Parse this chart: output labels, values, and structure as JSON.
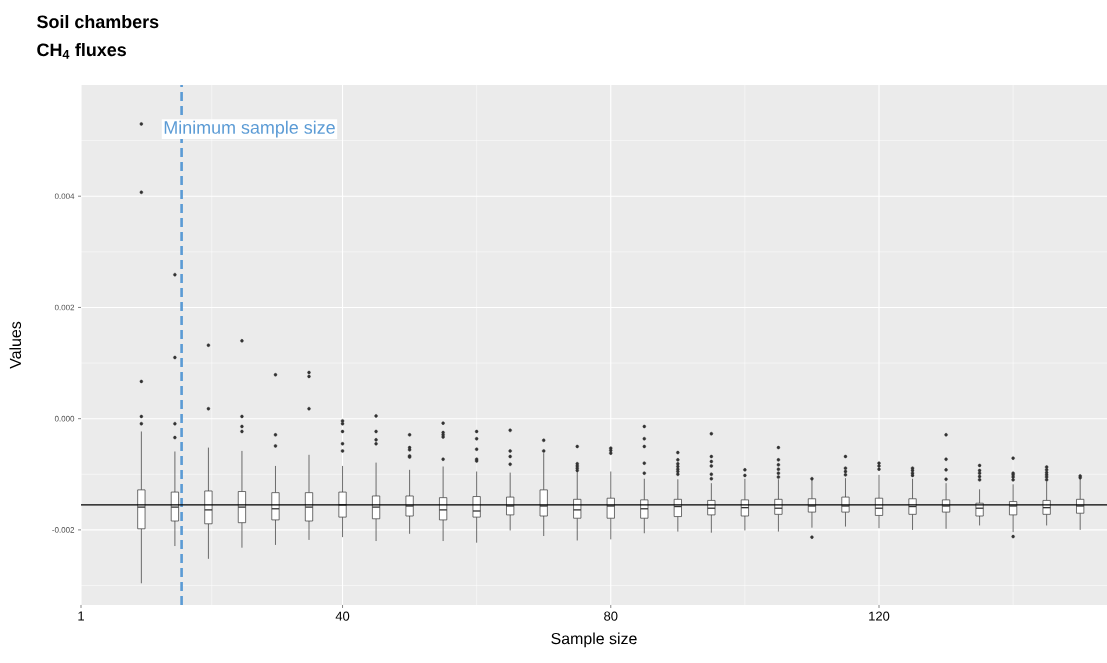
{
  "chart_data": {
    "type": "box",
    "title": "Soil chambers",
    "subtitle": "CH$_{4}$ fluxes",
    "xlabel": "Sample size",
    "ylabel": "Values",
    "x": [
      10,
      15,
      20,
      25,
      30,
      35,
      40,
      45,
      50,
      55,
      60,
      65,
      70,
      75,
      80,
      85,
      90,
      95,
      100,
      105,
      110,
      115,
      120,
      125,
      130,
      135,
      140,
      145,
      150
    ],
    "boxes": [
      {
        "low": -0.00296,
        "q1": -0.00198,
        "median": -0.00159,
        "q3": -0.00128,
        "high": -0.00023,
        "outliers": [
          0.0053,
          0.00407,
          0.00067,
          4e-05,
          -9e-05
        ]
      },
      {
        "low": -0.00229,
        "q1": -0.00184,
        "median": -0.00159,
        "q3": -0.00132,
        "high": -0.00059,
        "outliers": [
          0.00259,
          0.0011,
          -9e-05,
          -0.00034
        ]
      },
      {
        "low": -0.00252,
        "q1": -0.00189,
        "median": -0.00164,
        "q3": -0.0013,
        "high": -0.00052,
        "outliers": [
          0.00132,
          0.00018
        ]
      },
      {
        "low": -0.00232,
        "q1": -0.00187,
        "median": -0.00159,
        "q3": -0.00131,
        "high": -0.00058,
        "outliers": [
          0.0014,
          4e-05,
          -0.00014,
          -0.00023
        ]
      },
      {
        "low": -0.00227,
        "q1": -0.00182,
        "median": -0.00162,
        "q3": -0.00133,
        "high": -0.00085,
        "outliers": [
          0.00079,
          -0.00029,
          -0.00049
        ]
      },
      {
        "low": -0.00218,
        "q1": -0.00184,
        "median": -0.00159,
        "q3": -0.00133,
        "high": -0.00065,
        "outliers": [
          0.00083,
          0.00076,
          0.00018
        ]
      },
      {
        "low": -0.00213,
        "q1": -0.00177,
        "median": -0.00155,
        "q3": -0.00132,
        "high": -0.00085,
        "outliers": [
          -4e-05,
          -9e-05,
          -0.00023,
          -0.00045,
          -0.00058
        ]
      },
      {
        "low": -0.0022,
        "q1": -0.0018,
        "median": -0.00159,
        "q3": -0.00139,
        "high": -0.00079,
        "outliers": [
          5e-05,
          -0.00023,
          -0.00038,
          -0.00045
        ]
      },
      {
        "low": -0.00207,
        "q1": -0.00175,
        "median": -0.00157,
        "q3": -0.00139,
        "high": -0.00092,
        "outliers": [
          -0.00029,
          -0.00052,
          -0.00056,
          -0.00067,
          -0.00069
        ]
      },
      {
        "low": -0.0022,
        "q1": -0.00182,
        "median": -0.00164,
        "q3": -0.00142,
        "high": -0.00086,
        "outliers": [
          -8e-05,
          -0.00025,
          -0.00029,
          -0.00033,
          -0.00073
        ]
      },
      {
        "low": -0.00223,
        "q1": -0.00177,
        "median": -0.00166,
        "q3": -0.0014,
        "high": -0.00095,
        "outliers": [
          -0.00023,
          -0.00036,
          -0.00055,
          -0.00073,
          -0.00076
        ]
      },
      {
        "low": -0.00201,
        "q1": -0.00173,
        "median": -0.00157,
        "q3": -0.00141,
        "high": -0.00097,
        "outliers": [
          -0.00021,
          -0.00058,
          -0.00068,
          -0.00082
        ]
      },
      {
        "low": -0.00211,
        "q1": -0.00175,
        "median": -0.00157,
        "q3": -0.00128,
        "high": -0.00062,
        "outliers": [
          -0.00039,
          -0.00058
        ]
      },
      {
        "low": -0.00219,
        "q1": -0.00179,
        "median": -0.00164,
        "q3": -0.00145,
        "high": -0.00095,
        "outliers": [
          -0.0005,
          -0.00081,
          -0.00085,
          -0.00089,
          -0.00093
        ]
      },
      {
        "low": -0.00217,
        "q1": -0.00179,
        "median": -0.00157,
        "q3": -0.00143,
        "high": -0.00095,
        "outliers": [
          -0.00053,
          -0.00057,
          -0.00062
        ]
      },
      {
        "low": -0.00206,
        "q1": -0.00179,
        "median": -0.00162,
        "q3": -0.00146,
        "high": -0.00108,
        "outliers": [
          -0.00014,
          -0.00036,
          -0.0005,
          -0.0008,
          -0.00098
        ]
      },
      {
        "low": -0.00203,
        "q1": -0.00176,
        "median": -0.00158,
        "q3": -0.00145,
        "high": -0.00109,
        "outliers": [
          -0.00061,
          -0.00074,
          -0.00081,
          -0.00086,
          -0.00091,
          -0.00095,
          -0.001
        ]
      },
      {
        "low": -0.00205,
        "q1": -0.00173,
        "median": -0.00161,
        "q3": -0.00147,
        "high": -0.00116,
        "outliers": [
          -0.00027,
          -0.00068,
          -0.00077,
          -0.00085,
          -0.001,
          -0.00108
        ]
      },
      {
        "low": -0.00201,
        "q1": -0.00175,
        "median": -0.0016,
        "q3": -0.00146,
        "high": -0.00108,
        "outliers": [
          -0.00092,
          -0.00102
        ]
      },
      {
        "low": -0.00203,
        "q1": -0.00172,
        "median": -0.00161,
        "q3": -0.00145,
        "high": -0.00109,
        "outliers": [
          -0.00052,
          -0.00074,
          -0.00083,
          -0.00091,
          -0.00098,
          -0.00105
        ]
      },
      {
        "low": -0.00196,
        "q1": -0.00168,
        "median": -0.00157,
        "q3": -0.00144,
        "high": -0.0011,
        "outliers": [
          -0.00108,
          -0.00213
        ]
      },
      {
        "low": -0.00194,
        "q1": -0.00168,
        "median": -0.00157,
        "q3": -0.00141,
        "high": -0.00107,
        "outliers": [
          -0.00068,
          -0.00089,
          -0.00095,
          -0.00101
        ]
      },
      {
        "low": -0.00197,
        "q1": -0.00174,
        "median": -0.00161,
        "q3": -0.00143,
        "high": -0.00101,
        "outliers": [
          -0.0008,
          -0.00085,
          -0.00091
        ]
      },
      {
        "low": -0.002,
        "q1": -0.00172,
        "median": -0.00158,
        "q3": -0.00144,
        "high": -0.00108,
        "outliers": [
          -0.00089,
          -0.00093,
          -0.00098,
          -0.00102
        ]
      },
      {
        "low": -0.00198,
        "q1": -0.00168,
        "median": -0.00157,
        "q3": -0.00146,
        "high": -0.00116,
        "outliers": [
          -0.00029,
          -0.00073,
          -0.00092,
          -0.00109
        ]
      },
      {
        "low": -0.00192,
        "q1": -0.00175,
        "median": -0.00161,
        "q3": -0.00152,
        "high": -0.00127,
        "outliers": [
          -0.00084,
          -0.00093,
          -0.00098,
          -0.00104,
          -0.0011
        ]
      },
      {
        "low": -0.00204,
        "q1": -0.00173,
        "median": -0.00157,
        "q3": -0.00149,
        "high": -0.00118,
        "outliers": [
          -0.00071,
          -0.00098,
          -0.00101,
          -0.00105,
          -0.0011,
          -0.00212
        ]
      },
      {
        "low": -0.00192,
        "q1": -0.00172,
        "median": -0.0016,
        "q3": -0.00147,
        "high": -0.00113,
        "outliers": [
          -0.00087,
          -0.00092,
          -0.00097,
          -0.00101,
          -0.00105,
          -0.0011
        ]
      },
      {
        "low": -0.002,
        "q1": -0.0017,
        "median": -0.00157,
        "q3": -0.00145,
        "high": -0.00107,
        "outliers": [
          -0.00103,
          -0.00106
        ]
      }
    ],
    "xlim": [
      1,
      154
    ],
    "xticks": [
      1,
      40,
      80,
      120
    ],
    "ylim": [
      -0.00335,
      0.006
    ],
    "yticks": [
      {
        "value": -0.002,
        "label": "-0.002"
      },
      {
        "value": 0,
        "label": "0.000"
      },
      {
        "value": 0.002,
        "label": "0.002"
      },
      {
        "value": 0.004,
        "label": "0.004"
      }
    ],
    "ref_lines": [
      {
        "axis": "x",
        "value": 16,
        "label": "Minimum sample size",
        "color": "#5b9bd5",
        "line_style": "dashed"
      },
      {
        "axis": "y",
        "value": -0.00155,
        "color": "#000000"
      }
    ],
    "grid": true
  }
}
